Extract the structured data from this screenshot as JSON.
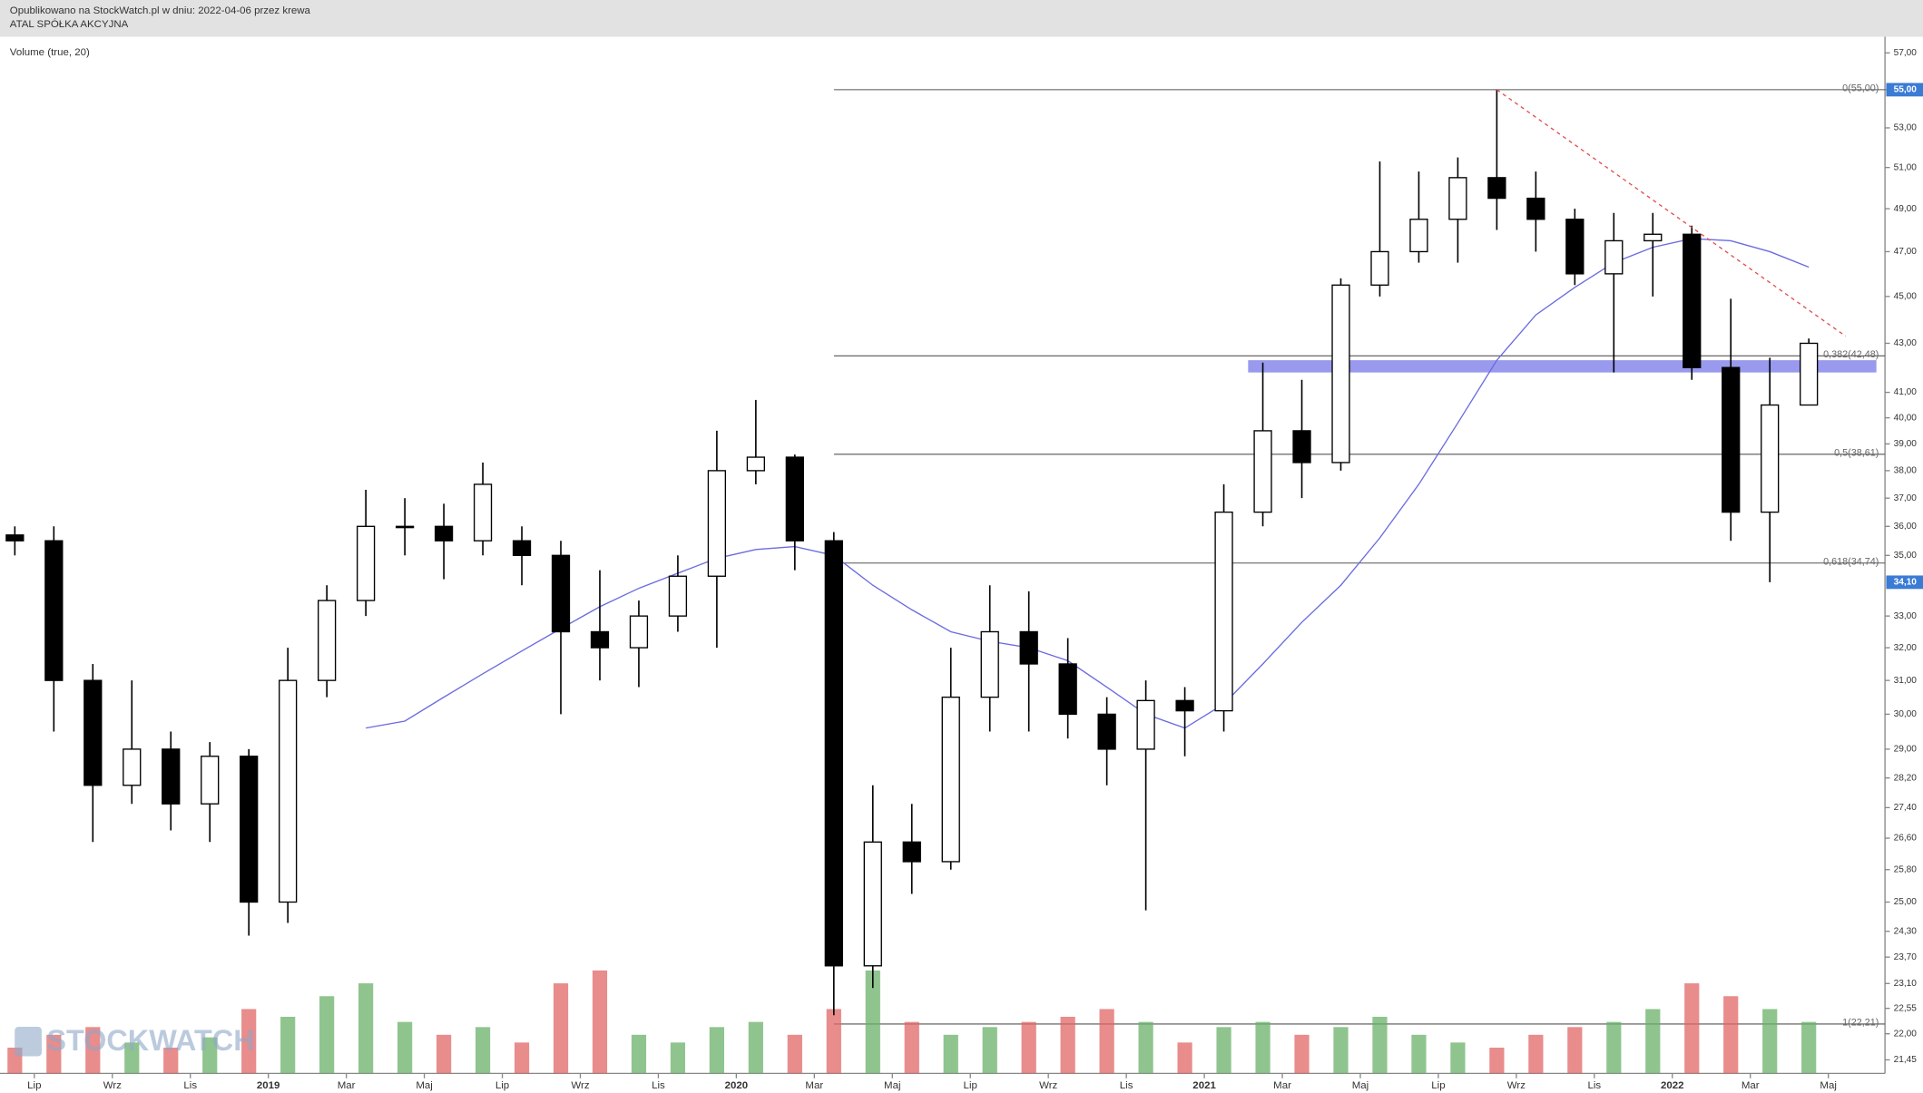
{
  "header": {
    "line1": "Opublikowano na StockWatch.pl w dniu: 2022-04-06 przez krewa",
    "line2": "ATAL SPÓŁKA AKCYJNA"
  },
  "chart_data": {
    "type": "candlestick",
    "indicator_label": "Volume (true, 20)",
    "logo": "STOCKWATCH",
    "log_scale": true,
    "categories": [
      null,
      "Lip",
      null,
      "Wrz",
      null,
      "Lis",
      null,
      "2019",
      null,
      "Mar",
      null,
      "Maj",
      null,
      "Lip",
      null,
      "Wrz",
      null,
      "Lis",
      null,
      "2020",
      null,
      "Mar",
      null,
      "Maj",
      null,
      "Lip",
      null,
      "Wrz",
      null,
      "Lis",
      null,
      "2021",
      null,
      "Mar",
      null,
      "Maj",
      null,
      "Lip",
      null,
      "Wrz",
      null,
      "Lis",
      null,
      "2022",
      null,
      "Mar",
      null,
      "Maj"
    ],
    "open": [
      35.7,
      35.5,
      31,
      28,
      29,
      27.5,
      28.8,
      25,
      31,
      33.5,
      36,
      36,
      35.5,
      35.5,
      35,
      32.5,
      32,
      33,
      34.3,
      38,
      38.5,
      35.5,
      23.5,
      26.5,
      26,
      30.5,
      32.5,
      31.5,
      30,
      29,
      30.4,
      30.1,
      36.5,
      39.5,
      38.3,
      45.5,
      47,
      48.5,
      50.5,
      49.5,
      48.5,
      46,
      47.5,
      47.8,
      42,
      36.5,
      40.5,
      null
    ],
    "high": [
      36,
      36,
      31.5,
      31,
      29.5,
      29.2,
      29,
      32,
      34,
      37.3,
      37,
      36.8,
      38.3,
      36,
      35.5,
      34.5,
      33.5,
      35,
      39.5,
      40.7,
      38.6,
      35.8,
      28,
      27.5,
      32,
      34,
      33.8,
      32.3,
      30.5,
      31,
      30.8,
      37.5,
      42.2,
      41.5,
      45.8,
      51.3,
      50.8,
      51.5,
      55,
      50.8,
      49,
      48.8,
      48.8,
      48.2,
      44.9,
      42.4,
      43.2,
      null
    ],
    "low": [
      35,
      29.5,
      26.5,
      27.5,
      26.8,
      26.5,
      24.2,
      24.5,
      30.5,
      33,
      35,
      34.2,
      35,
      34,
      30,
      31,
      30.8,
      32.5,
      32,
      37.5,
      34.5,
      22.4,
      23,
      25.2,
      25.8,
      29.5,
      29.5,
      29.3,
      28,
      24.8,
      28.8,
      29.5,
      36,
      37,
      38,
      45,
      46.5,
      46.5,
      48,
      47,
      45.5,
      41.8,
      45,
      41.5,
      35.5,
      34.1,
      40.5,
      null
    ],
    "close": [
      35.5,
      31,
      28,
      29,
      27.5,
      28.8,
      25,
      31,
      33.5,
      36,
      36,
      35.5,
      37.5,
      35,
      32.5,
      32,
      33,
      34.3,
      38,
      38.5,
      35.5,
      23.5,
      26.5,
      26,
      30.5,
      32.5,
      31.5,
      30,
      29,
      30.4,
      30.1,
      36.5,
      39.5,
      38.3,
      45.5,
      47,
      48.5,
      50.5,
      49.5,
      48.5,
      46,
      47.5,
      47.8,
      42,
      36.5,
      40.5,
      43,
      null
    ],
    "up_color": "#6ab06a",
    "down_color": "#e06666",
    "volume": [
      10,
      15,
      18,
      12,
      10,
      14,
      25,
      22,
      30,
      35,
      20,
      15,
      18,
      12,
      35,
      40,
      15,
      12,
      18,
      20,
      15,
      25,
      40,
      20,
      15,
      18,
      20,
      22,
      25,
      20,
      12,
      18,
      20,
      15,
      18,
      22,
      15,
      12,
      10,
      15,
      18,
      20,
      25,
      35,
      30,
      25,
      20,
      null
    ],
    "volume_lim": [
      0,
      100
    ],
    "moving_average": {
      "color": "#6b6be0",
      "values": [
        null,
        null,
        null,
        null,
        null,
        null,
        null,
        null,
        null,
        29.6,
        29.8,
        30.5,
        31.2,
        31.9,
        32.6,
        33.3,
        33.9,
        34.4,
        34.9,
        35.2,
        35.3,
        35.0,
        34.0,
        33.2,
        32.5,
        32.2,
        32.0,
        31.6,
        30.8,
        30.0,
        29.6,
        30.3,
        31.5,
        32.8,
        34.0,
        35.6,
        37.5,
        39.8,
        42.3,
        44.2,
        45.4,
        46.5,
        47.2,
        47.6,
        47.5,
        47.0,
        46.3,
        null
      ]
    },
    "trendline": {
      "values": [
        55,
        43.3
      ],
      "color": "#e05050"
    },
    "zone": {
      "values": [
        41.8,
        42.3
      ],
      "color": "#9999ee"
    },
    "fib_levels": [
      {
        "value": 55,
        "label": "0(55,00)"
      },
      {
        "value": 42.48,
        "label": "0,382(42,48)"
      },
      {
        "value": 38.61,
        "label": "0,5(38,61)"
      },
      {
        "value": 34.74,
        "label": "0,618(34,74)"
      },
      {
        "value": 22.21,
        "label": "1(22,21)"
      }
    ],
    "price_tags": [
      {
        "value": 55,
        "label": "55,00"
      },
      {
        "value": 34.1,
        "label": "34,10"
      }
    ],
    "ylim": [
      21.17,
      57.9
    ],
    "yticks": [
      {
        "value": 57,
        "label": "57,00"
      },
      {
        "value": 55,
        "label": "55,00"
      },
      {
        "value": 53,
        "label": "53,00"
      },
      {
        "value": 51,
        "label": "51,00"
      },
      {
        "value": 49,
        "label": "49,00"
      },
      {
        "value": 47,
        "label": "47,00"
      },
      {
        "value": 45,
        "label": "45,00"
      },
      {
        "value": 43,
        "label": "43,00"
      },
      {
        "value": 41,
        "label": "41,00"
      },
      {
        "value": 40,
        "label": "40,00"
      },
      {
        "value": 39,
        "label": "39,00"
      },
      {
        "value": 38,
        "label": "38,00"
      },
      {
        "value": 37,
        "label": "37,00"
      },
      {
        "value": 36,
        "label": "36,00"
      },
      {
        "value": 35,
        "label": "35,00"
      },
      {
        "value": 33,
        "label": "33,00"
      },
      {
        "value": 32,
        "label": "32,00"
      },
      {
        "value": 31,
        "label": "31,00"
      },
      {
        "value": 30,
        "label": "30,00"
      },
      {
        "value": 29,
        "label": "29,00"
      },
      {
        "value": 28.2,
        "label": "28,20"
      },
      {
        "value": 27.4,
        "label": "27,40"
      },
      {
        "value": 26.6,
        "label": "26,60"
      },
      {
        "value": 25.8,
        "label": "25,80"
      },
      {
        "value": 25,
        "label": "25,00"
      },
      {
        "value": 24.3,
        "label": "24,30"
      },
      {
        "value": 23.7,
        "label": "23,70"
      },
      {
        "value": 23.1,
        "label": "23,10"
      },
      {
        "value": 22.55,
        "label": "22,55"
      },
      {
        "value": 22,
        "label": "22,00"
      },
      {
        "value": 21.45,
        "label": "21,45"
      }
    ]
  }
}
